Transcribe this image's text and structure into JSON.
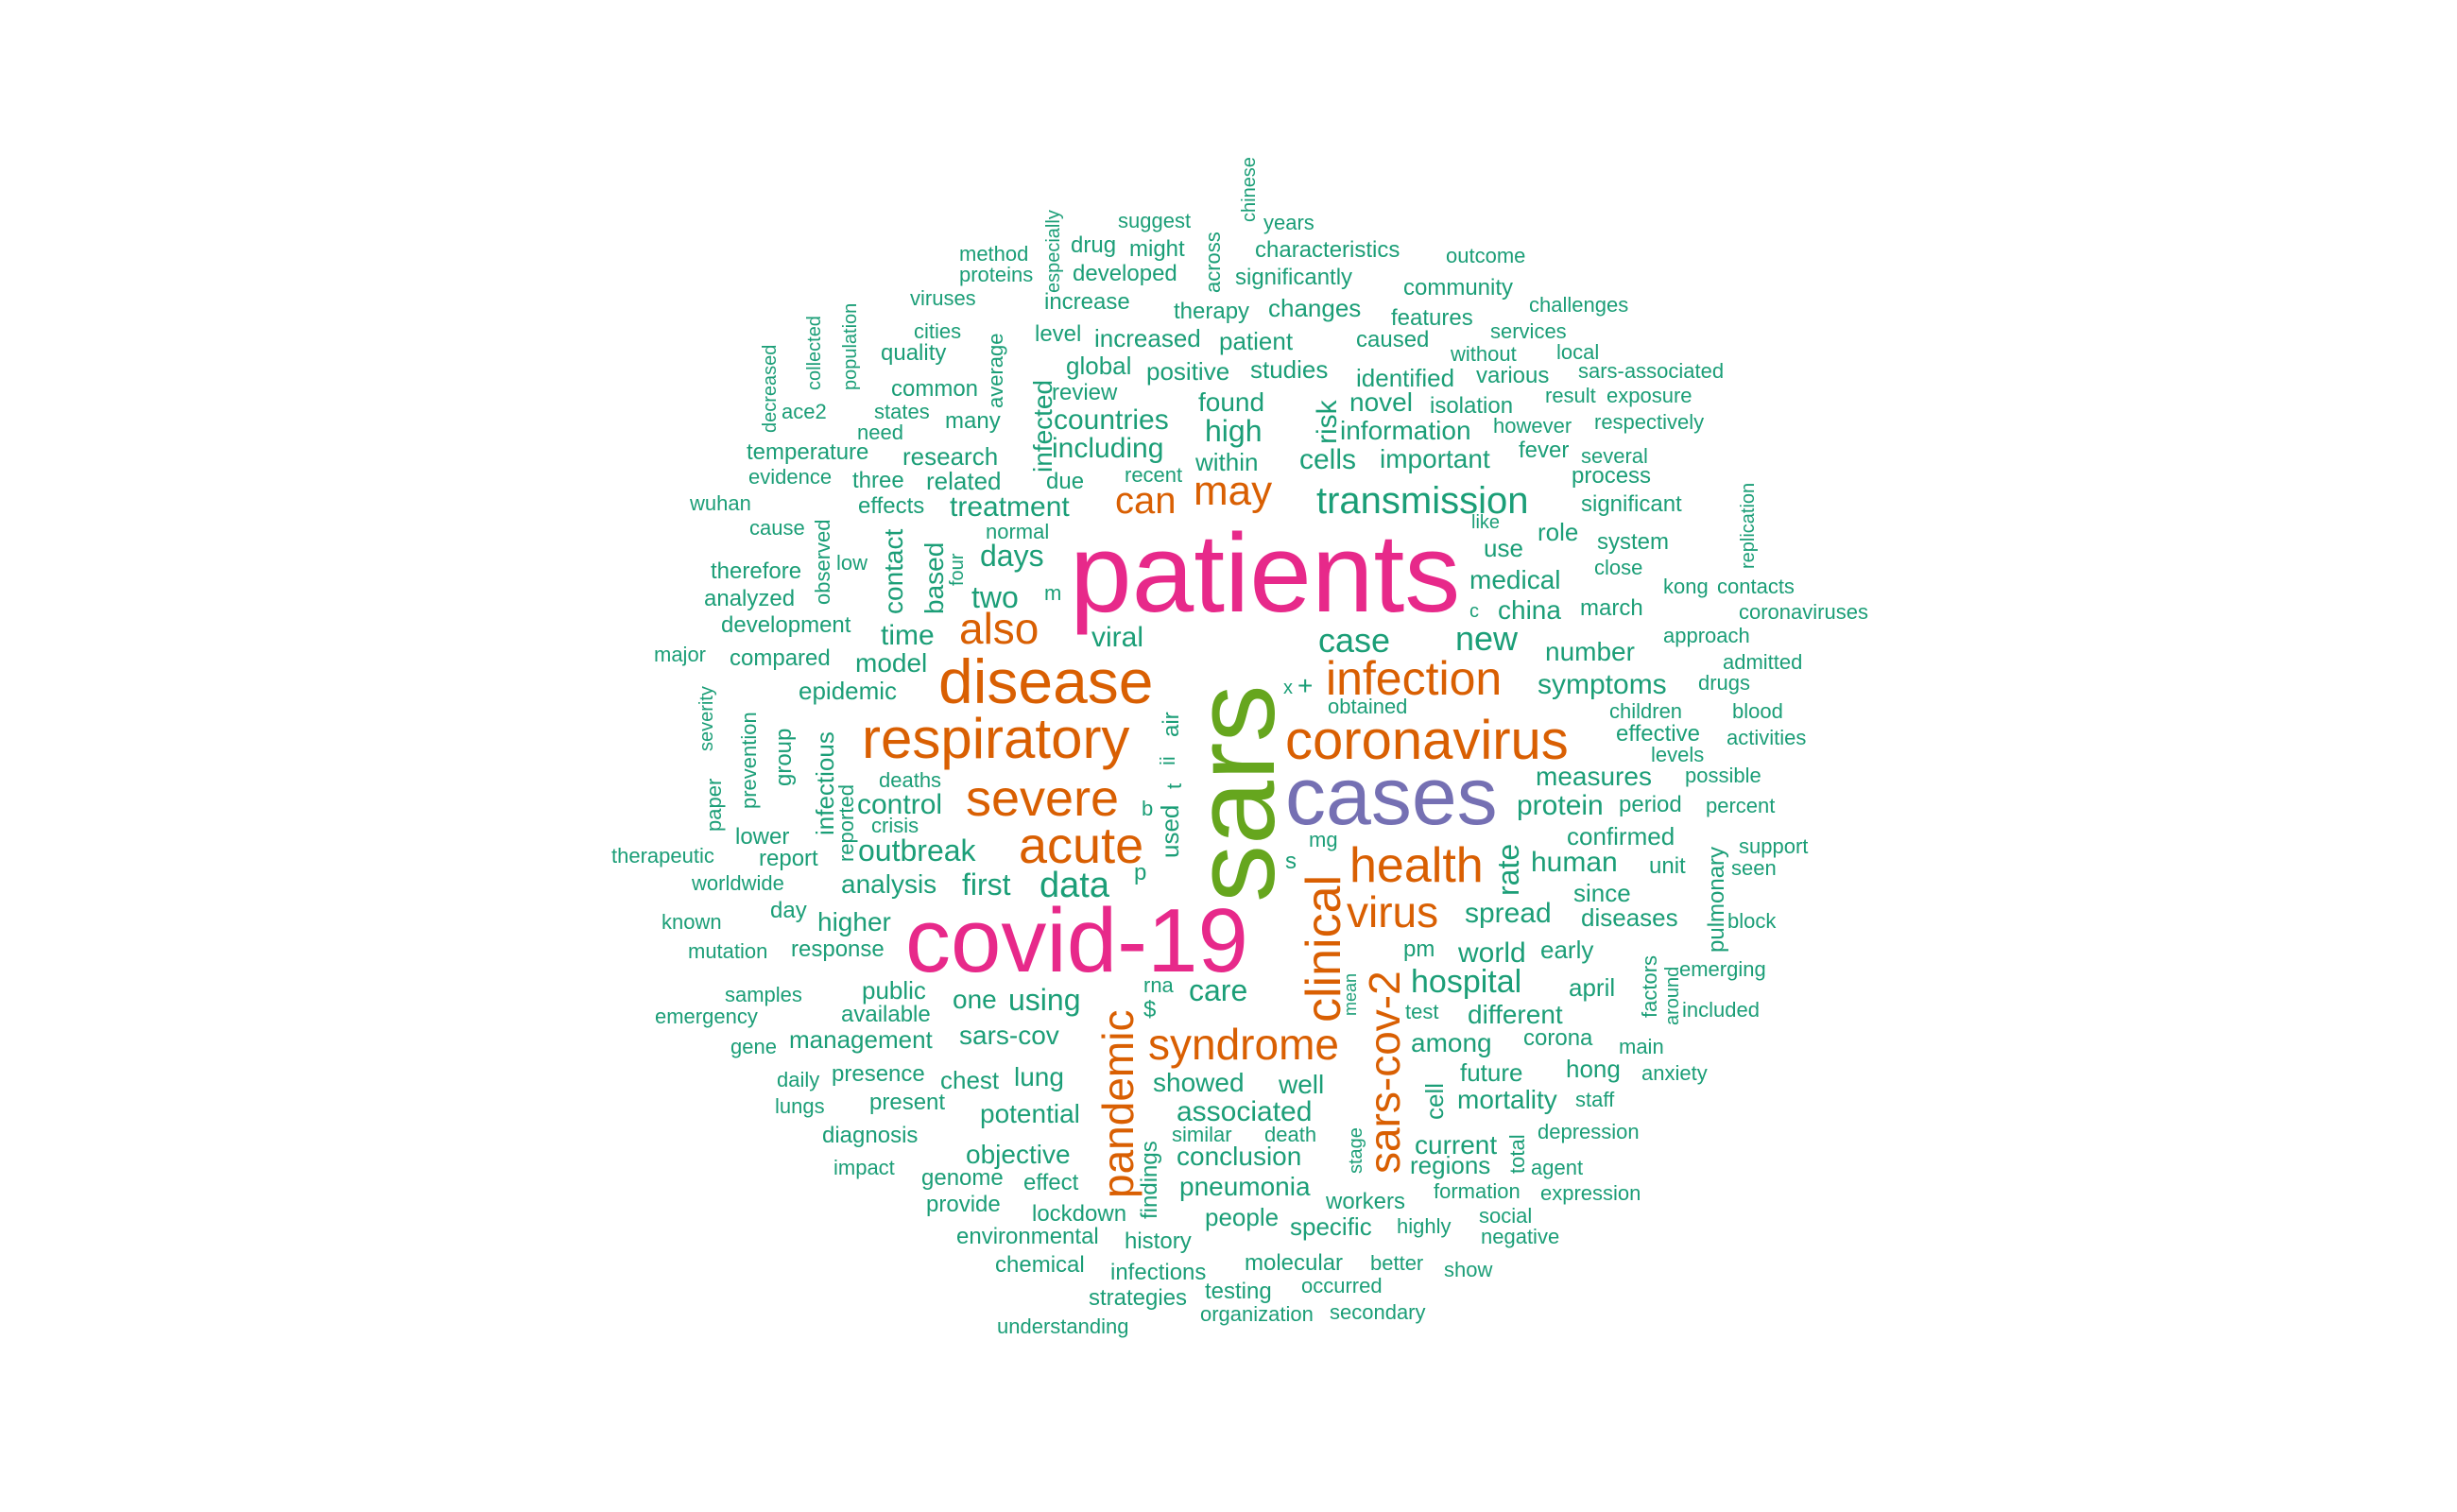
{
  "palette": {
    "green": "#1b9e77",
    "orange": "#d95f02",
    "purple": "#7570b3",
    "pink": "#e7298a",
    "lime": "#66a61e"
  },
  "words": [
    "patients",
    "sars",
    "covid-19",
    "cases",
    "disease",
    "respiratory",
    "coronavirus",
    "infection",
    "severe",
    "acute",
    "health",
    "clinical",
    "virus",
    "sars-cov-2",
    "pandemic",
    "syndrome",
    "also",
    "may",
    "can",
    "transmission",
    "data",
    "case",
    "new",
    "hospital",
    "care",
    "first",
    "days",
    "two",
    "outbreak",
    "control",
    "analysis",
    "treatment",
    "including",
    "countries",
    "high",
    "cells",
    "important",
    "information",
    "novel",
    "found",
    "within",
    "global",
    "positive",
    "studies",
    "patient",
    "increased",
    "identified",
    "infected",
    "risk",
    "rate",
    "spread",
    "protein",
    "measures",
    "symptoms",
    "number",
    "china",
    "medical",
    "use",
    "role",
    "human",
    "world",
    "early",
    "among",
    "different",
    "management",
    "sars-cov",
    "chest",
    "lung",
    "showed",
    "well",
    "associated",
    "conclusion",
    "pneumonia",
    "people",
    "specific",
    "mortality",
    "future",
    "hong",
    "current",
    "regions",
    "using",
    "one",
    "public",
    "available",
    "time",
    "model",
    "epidemic",
    "based",
    "contact",
    "viral",
    "related",
    "research",
    "many",
    "common",
    "quality",
    "cities",
    "average",
    "level",
    "increase",
    "developed",
    "drug",
    "might",
    "suggest",
    "across",
    "especially",
    "method",
    "proteins",
    "viruses",
    "chinese",
    "years",
    "characteristics",
    "significantly",
    "changes",
    "caused",
    "community",
    "features",
    "outcome",
    "challenges",
    "services",
    "local",
    "without",
    "various",
    "sars-associated",
    "result",
    "exposure",
    "however",
    "respectively",
    "fever",
    "several",
    "process",
    "significant",
    "isolation",
    "therapy",
    "review",
    "temperature",
    "evidence",
    "three",
    "need",
    "states",
    "ace2",
    "decreased",
    "collected",
    "population",
    "wuhan",
    "cause",
    "effects",
    "due",
    "recent",
    "normal",
    "therefore",
    "analyzed",
    "development",
    "compared",
    "major",
    "severity",
    "prevention",
    "group",
    "infectious",
    "reported",
    "deaths",
    "crisis",
    "paper",
    "therapeutic",
    "report",
    "worldwide",
    "lower",
    "higher",
    "known",
    "day",
    "mutation",
    "response",
    "samples",
    "emergency",
    "gene",
    "presence",
    "daily",
    "lungs",
    "present",
    "diagnosis",
    "impact",
    "genome",
    "provide",
    "effect",
    "objective",
    "potential",
    "lockdown",
    "environmental",
    "history",
    "chemical",
    "infections",
    "strategies",
    "testing",
    "understanding",
    "organization",
    "secondary",
    "occurred",
    "molecular",
    "better",
    "workers",
    "show",
    "highly",
    "negative",
    "social",
    "formation",
    "expression",
    "agent",
    "depression",
    "total",
    "stage",
    "death",
    "similar",
    "findings",
    "used",
    "cell",
    "mean",
    "pm",
    "test",
    "rna",
    "$",
    "p",
    "b",
    "s",
    "mg",
    "x",
    "+",
    "ii",
    "air",
    "t",
    "m",
    "c",
    "four",
    "low",
    "observed",
    "like",
    "system",
    "close",
    "march",
    "kong",
    "contacts",
    "coronaviruses",
    "replication",
    "approach",
    "drugs",
    "admitted",
    "blood",
    "activities",
    "children",
    "levels",
    "effective",
    "possible",
    "percent",
    "period",
    "confirmed",
    "unit",
    "since",
    "diseases",
    "pulmonary",
    "support",
    "seen",
    "block",
    "factors",
    "around",
    "emerging",
    "included",
    "april",
    "corona",
    "main",
    "anxiety",
    "staff",
    "obtained"
  ]
}
